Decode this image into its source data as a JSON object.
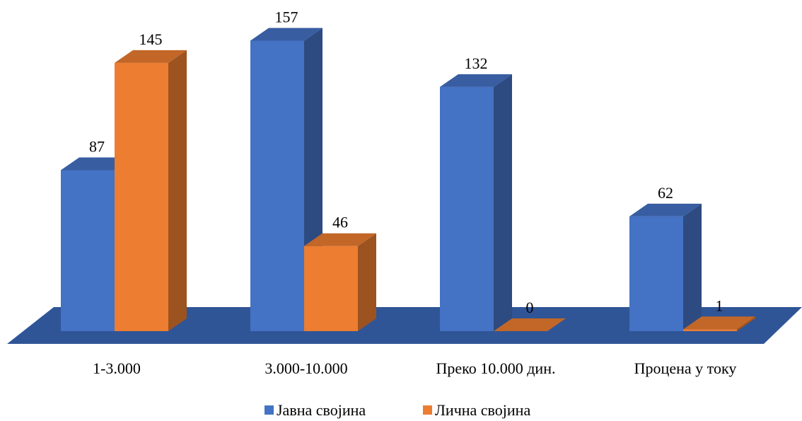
{
  "chart_data": {
    "type": "bar",
    "style": "3d-clustered-column",
    "categories": [
      "1-3.000",
      "3.000-10.000",
      "Преко 10.000 дин.",
      "Процена у току"
    ],
    "series": [
      {
        "name": "Јавна својина",
        "values": [
          87,
          157,
          132,
          62
        ],
        "color": "#4472C4"
      },
      {
        "name": "Лична својина",
        "values": [
          145,
          46,
          0,
          1
        ],
        "color": "#ED7D31"
      }
    ],
    "data_labels": true,
    "grid": false,
    "floor_color": "#2F5597",
    "legend_position": "bottom",
    "ylim": [
      0,
      160
    ]
  }
}
